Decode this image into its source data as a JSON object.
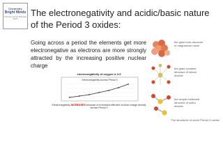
{
  "logo": {
    "line1": "Chemistry",
    "line2": "Bright Minds",
    "line3": "Chemistry and the Molecular World"
  },
  "title": "The electronegativity and acidic/basic nature of the Period 3 oxides:",
  "body": "Going across a period the elements get more electronegative as electrons are more strongly attracted by the increasing positive nuclear charge",
  "figure": {
    "note": "electronegativity of oxygen is 3.5",
    "chart_title": "Electronegativity Across Period 3",
    "caption_strong": "INCREASES",
    "caption_before": "Electronegativity",
    "caption_after": "because of increased effective nuclear charge density across Period 3"
  },
  "structures": {
    "mgo": "the giant ionic structure of magnesium oxide",
    "sio2": "the giant covalent structure of silicon dioxide",
    "so2": "the simple molecular structure of sulfur dioxide",
    "caption": "The structures of some Period 3 oxides"
  }
}
